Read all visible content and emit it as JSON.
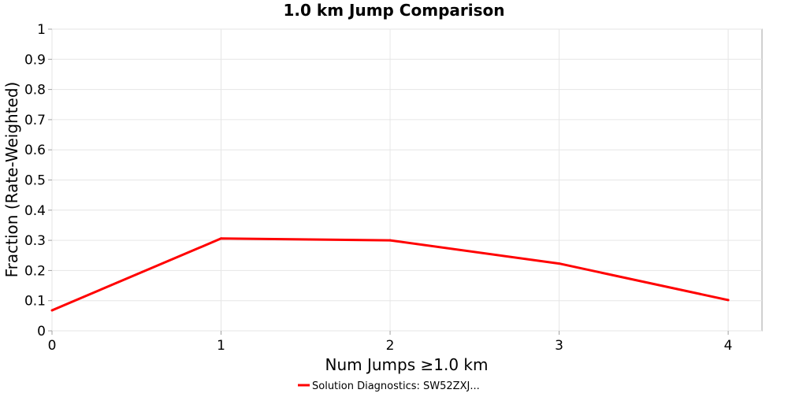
{
  "chart_data": {
    "type": "line",
    "title": "1.0 km Jump Comparison",
    "xlabel": "Num Jumps ≥1.0 km",
    "ylabel": "Fraction (Rate-Weighted)",
    "xlim": [
      0,
      4.2
    ],
    "ylim": [
      0,
      1
    ],
    "x_ticks": [
      "0",
      "1",
      "2",
      "3",
      "4"
    ],
    "y_ticks": [
      "0",
      "0.1",
      "0.2",
      "0.3",
      "0.4",
      "0.5",
      "0.6",
      "0.7",
      "0.8",
      "0.9",
      "1"
    ],
    "grid": true,
    "legend_position": "bottom-center",
    "series": [
      {
        "name": "Solution Diagnostics: SW52ZXJ...",
        "color": "#ff0000",
        "x": [
          0,
          1,
          2,
          3,
          4
        ],
        "y": [
          0.068,
          0.306,
          0.3,
          0.223,
          0.102
        ]
      }
    ]
  }
}
